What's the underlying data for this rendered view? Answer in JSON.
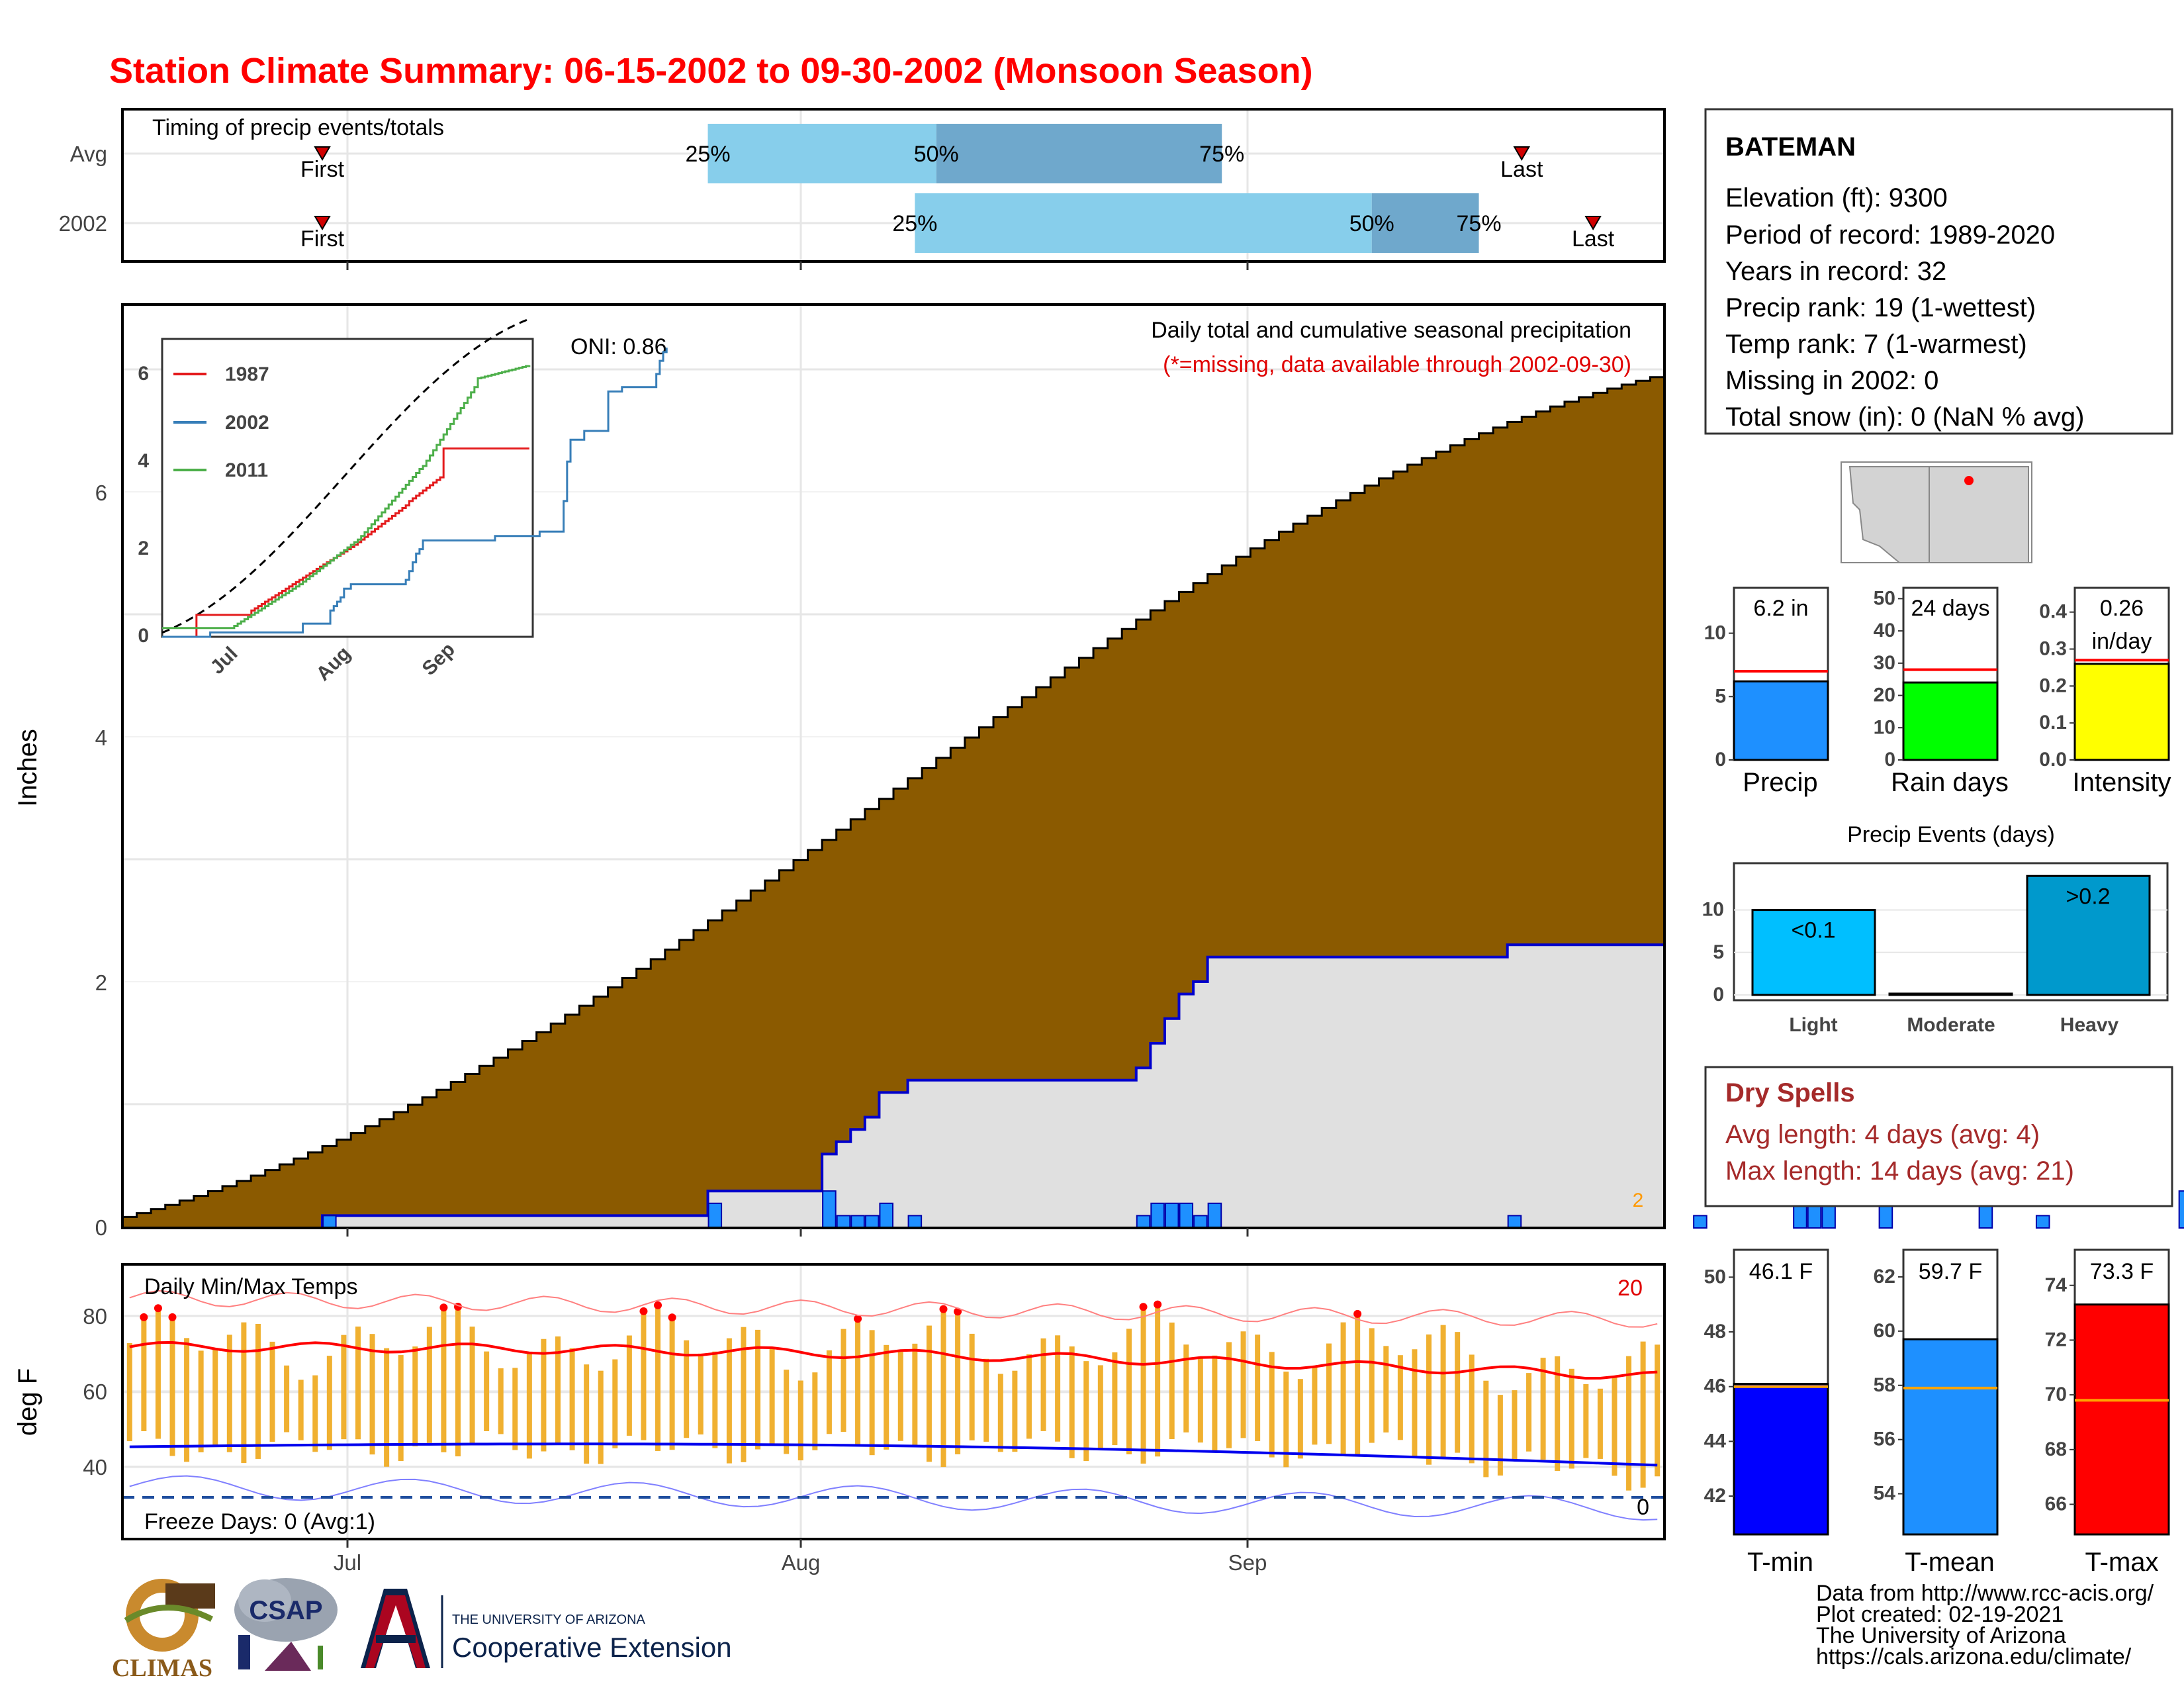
{
  "title": "Station Climate Summary: 06-15-2002 to 09-30-2002 (Monsoon Season)",
  "timing": {
    "title": "Timing of precip events/totals",
    "rows": [
      {
        "label": "Avg",
        "first_label": "First",
        "last_label": "Last",
        "first_day": 14,
        "last_day": 98,
        "q25": 41,
        "q50": 57,
        "q75": 77,
        "p25": "25%",
        "p50": "50%",
        "p75": "75%"
      },
      {
        "label": "2002",
        "first_label": "First",
        "last_label": "Last",
        "first_day": 14,
        "last_day": 103,
        "q25": 55.5,
        "q50": 87.5,
        "q75": 95,
        "p25": "25%",
        "p50": "50%",
        "p75": "75%"
      }
    ]
  },
  "main": {
    "title": "Daily total and cumulative seasonal precipitation",
    "subtitle": "(*=missing, data available through 2002-09-30)",
    "ylabel": "Inches",
    "oni": "ONI: 0.86",
    "yticks": [
      "0",
      "2",
      "4",
      "6"
    ],
    "marker_label": "2",
    "xticks": [
      "Jul",
      "Aug",
      "Sep"
    ]
  },
  "inset": {
    "yticks": [
      "0",
      "2",
      "4",
      "6"
    ],
    "xticks": [
      "Jul",
      "Aug",
      "Sep"
    ],
    "legend": [
      {
        "name": "1987",
        "color": "#e41a1c"
      },
      {
        "name": "2002",
        "color": "#377eb8"
      },
      {
        "name": "2011",
        "color": "#4daf4a"
      }
    ]
  },
  "temps": {
    "title": "Daily Min/Max Temps",
    "ylabel": "deg F",
    "yticks": [
      "40",
      "60",
      "80"
    ],
    "count_high": "20",
    "count_low": "0",
    "freeze": "Freeze Days: 0 (Avg:1)"
  },
  "station": {
    "name": "BATEMAN",
    "lines": [
      "Elevation (ft): 9300",
      "Period of record: 1989-2020",
      "Years in record: 32",
      "Precip rank: 19 (1-wettest)",
      "Temp rank: 7 (1-warmest)",
      "Missing in 2002: 0",
      "Total snow (in): 0 (NaN % avg)"
    ]
  },
  "summary_bars": [
    {
      "label": "Precip",
      "value": 6.2,
      "avg": 7.0,
      "text": [
        "6.2 in"
      ],
      "ymax": 14,
      "ticks": [
        "0",
        "5",
        "10"
      ],
      "tickvals": [
        0,
        5,
        10
      ],
      "color": "#1e90ff"
    },
    {
      "label": "Rain days",
      "value": 24,
      "avg": 28,
      "text": [
        "24 days"
      ],
      "ymax": 55,
      "ticks": [
        "0",
        "10",
        "20",
        "30",
        "40",
        "50"
      ],
      "tickvals": [
        0,
        10,
        20,
        30,
        40,
        50
      ],
      "color": "#00ff00"
    },
    {
      "label": "Intensity",
      "value": 0.26,
      "avg": 0.27,
      "text": [
        "0.26",
        "in/day"
      ],
      "ymax": 0.48,
      "ticks": [
        "0.0",
        "0.1",
        "0.2",
        "0.3",
        "0.4"
      ],
      "tickvals": [
        0,
        0.1,
        0.2,
        0.3,
        0.4
      ],
      "color": "#ffff00"
    }
  ],
  "events": {
    "title": "Precip Events (days)",
    "categories": [
      "Light",
      "Moderate",
      "Heavy"
    ],
    "labels": [
      "<0.1",
      "",
      ">0.2"
    ],
    "values": [
      10,
      0,
      14
    ],
    "colors": [
      "#00bfff",
      "#1e90ff",
      "#0099cc"
    ],
    "ticks": [
      "0",
      "5",
      "10"
    ],
    "tickvals": [
      0,
      5,
      10
    ],
    "ymax": 15.5
  },
  "dry_spells": {
    "title": "Dry Spells",
    "avg": "Avg length: 4 days (avg: 4)",
    "max": "Max length: 14 days (avg: 21)"
  },
  "temp_bars": [
    {
      "label": "T-min",
      "value": 46.1,
      "avg": 46.0,
      "text": "46.1 F",
      "ymin": 40.6,
      "ymax": 51.0,
      "ticks": [
        "42",
        "44",
        "46",
        "48",
        "50"
      ],
      "tickvals": [
        42,
        44,
        46,
        48,
        50
      ],
      "color": "#0000ff"
    },
    {
      "label": "T-mean",
      "value": 59.7,
      "avg": 57.9,
      "text": "59.7 F",
      "ymin": 52.5,
      "ymax": 63.0,
      "ticks": [
        "54",
        "56",
        "58",
        "60",
        "62"
      ],
      "tickvals": [
        54,
        56,
        58,
        60,
        62
      ],
      "color": "#1e90ff"
    },
    {
      "label": "T-max",
      "value": 73.3,
      "avg": 69.8,
      "text": "73.3 F",
      "ymin": 64.9,
      "ymax": 75.3,
      "ticks": [
        "66",
        "68",
        "70",
        "72",
        "74"
      ],
      "tickvals": [
        66,
        68,
        70,
        72,
        74
      ],
      "color": "#ff0000"
    }
  ],
  "credits": [
    "Data from http://www.rcc-acis.org/",
    "Plot created: 02-19-2021",
    "The University of Arizona",
    "https://cals.arizona.edu/climate/"
  ],
  "logos": {
    "climas": "CLIMAS",
    "csap": "CSAP",
    "ua_small": "THE UNIVERSITY OF ARIZONA",
    "ua_big": "Cooperative Extension"
  },
  "chart_data": {
    "type": "area",
    "x_start": "2002-06-15",
    "x_end": "2002-09-30",
    "ylim": [
      0,
      7.5
    ],
    "daily_precip": [
      0,
      0,
      0,
      0,
      0,
      0,
      0,
      0,
      0,
      0,
      0,
      0,
      0,
      0,
      0.1,
      0,
      0,
      0,
      0,
      0,
      0,
      0,
      0,
      0,
      0,
      0,
      0,
      0,
      0,
      0,
      0,
      0,
      0,
      0,
      0,
      0,
      0,
      0,
      0,
      0,
      0,
      0.2,
      0,
      0,
      0,
      0,
      0,
      0,
      0,
      0.3,
      0.1,
      0.1,
      0.1,
      0.2,
      0,
      0.1,
      0,
      0,
      0,
      0,
      0,
      0,
      0,
      0,
      0,
      0,
      0,
      0,
      0,
      0,
      0,
      0.1,
      0.2,
      0.2,
      0.2,
      0.1,
      0.2,
      0,
      0,
      0,
      0,
      0,
      0,
      0,
      0,
      0,
      0,
      0,
      0,
      0,
      0,
      0,
      0,
      0,
      0,
      0,
      0,
      0.1,
      0,
      0,
      0,
      0,
      0,
      0,
      0,
      0,
      0,
      0,
      0,
      0,
      0.1,
      0,
      0,
      0,
      0,
      0,
      0,
      0.7,
      0.9,
      0.5,
      0,
      0,
      0,
      0.2,
      0,
      0,
      0,
      0,
      0,
      0,
      0.9,
      0,
      0,
      0,
      0.1,
      0,
      0,
      0,
      0,
      0,
      0,
      0,
      0,
      0,
      0.3,
      0.3,
      0.2,
      0.1
    ],
    "avg_cum_end": 6.85,
    "oni": 0.86,
    "temps_note": "Daily min/max temperature bars with 7-day means, record extremes"
  }
}
